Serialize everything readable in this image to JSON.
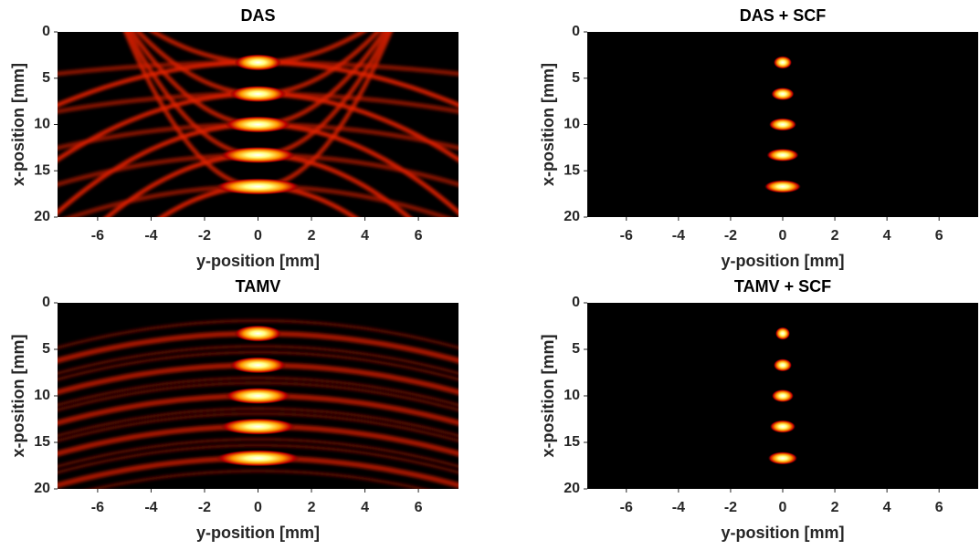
{
  "chart_data": [
    {
      "type": "heatmap",
      "title": "DAS",
      "xlabel": "y-position [mm]",
      "ylabel": "x-position [mm]",
      "xlim": [
        -7.5,
        7.5
      ],
      "ylim": [
        0,
        20
      ],
      "y_reversed": true,
      "xticks": [
        -6,
        -4,
        -2,
        0,
        2,
        4,
        6
      ],
      "yticks": [
        0,
        5,
        10,
        15,
        20
      ],
      "x": [
        0,
        0,
        0,
        0,
        0
      ],
      "y": [
        3.3,
        6.7,
        10,
        13.3,
        16.7
      ]
    },
    {
      "type": "heatmap",
      "title": "DAS + SCF",
      "xlabel": "y-position [mm]",
      "ylabel": "x-position [mm]",
      "xlim": [
        -7.5,
        7.5
      ],
      "ylim": [
        0,
        20
      ],
      "y_reversed": true,
      "xticks": [
        -6,
        -4,
        -2,
        0,
        2,
        4,
        6
      ],
      "yticks": [
        0,
        5,
        10,
        15,
        20
      ],
      "x": [
        0,
        0,
        0,
        0,
        0
      ],
      "y": [
        3.3,
        6.7,
        10,
        13.3,
        16.7
      ]
    },
    {
      "type": "heatmap",
      "title": "TAMV",
      "xlabel": "y-position [mm]",
      "ylabel": "x-position [mm]",
      "xlim": [
        -7.5,
        7.5
      ],
      "ylim": [
        0,
        20
      ],
      "y_reversed": true,
      "xticks": [
        -6,
        -4,
        -2,
        0,
        2,
        4,
        6
      ],
      "yticks": [
        0,
        5,
        10,
        15,
        20
      ],
      "x": [
        0,
        0,
        0,
        0,
        0
      ],
      "y": [
        3.3,
        6.7,
        10,
        13.3,
        16.7
      ]
    },
    {
      "type": "heatmap",
      "title": "TAMV + SCF",
      "xlabel": "y-position [mm]",
      "ylabel": "x-position [mm]",
      "xlim": [
        -7.5,
        7.5
      ],
      "ylim": [
        0,
        20
      ],
      "y_reversed": true,
      "xticks": [
        -6,
        -4,
        -2,
        0,
        2,
        4,
        6
      ],
      "yticks": [
        0,
        5,
        10,
        15,
        20
      ],
      "x": [
        0,
        0,
        0,
        0,
        0
      ],
      "y": [
        3.3,
        6.7,
        10,
        13.3,
        16.7
      ]
    }
  ]
}
